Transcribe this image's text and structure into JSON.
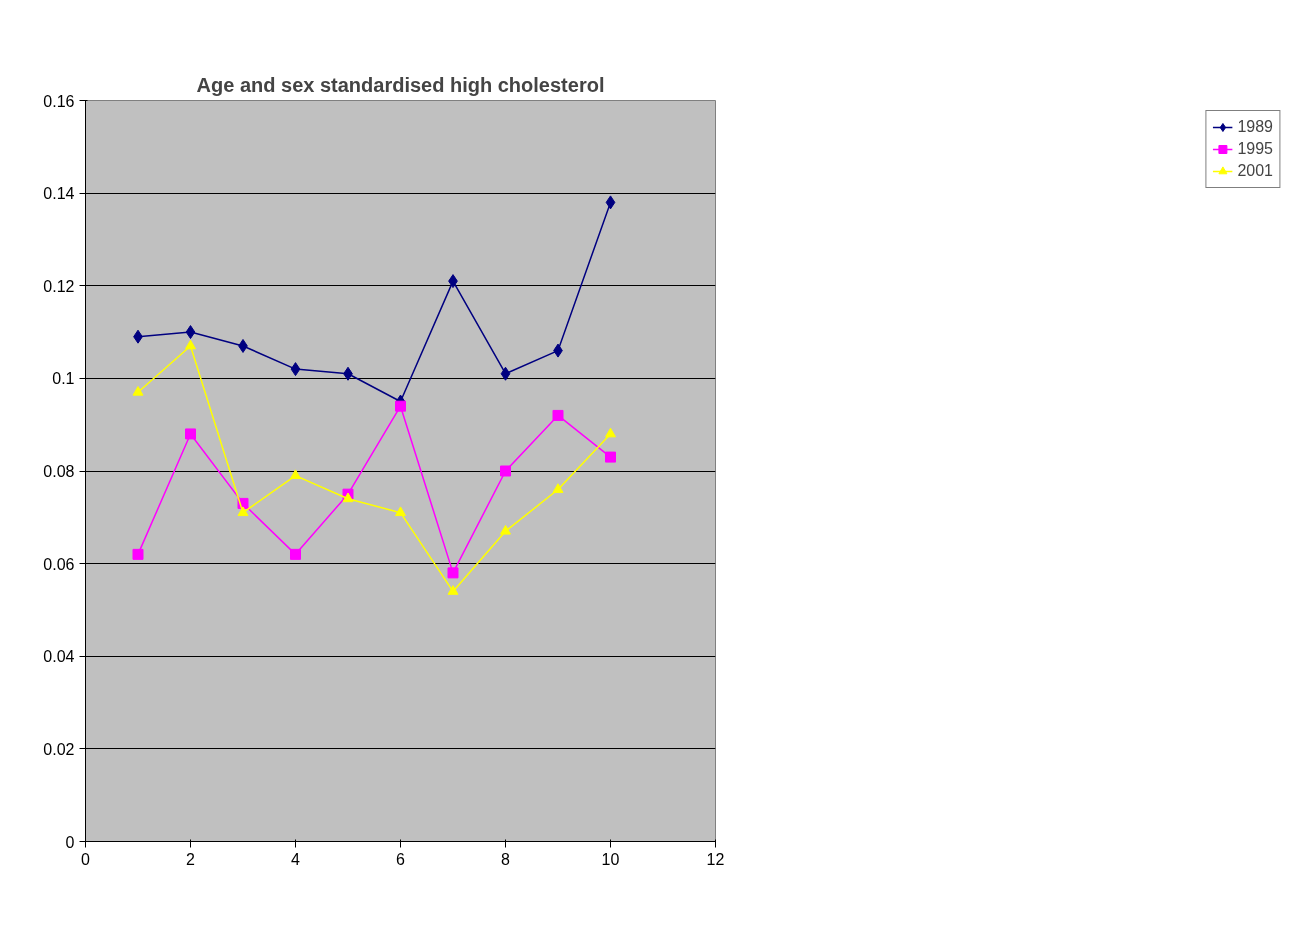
{
  "chart_data": {
    "type": "line",
    "title": "Age and sex standardised high cholesterol",
    "x": [
      1,
      2,
      3,
      4,
      5,
      6,
      7,
      8,
      9,
      10
    ],
    "series": [
      {
        "name": "1989",
        "color": "#000080",
        "marker": "diamond",
        "values": [
          0.109,
          0.11,
          0.107,
          0.102,
          0.101,
          0.095,
          0.121,
          0.101,
          0.106,
          0.138
        ]
      },
      {
        "name": "1995",
        "color": "#ff00ff",
        "marker": "square",
        "values": [
          0.062,
          0.088,
          0.073,
          0.062,
          0.075,
          0.094,
          0.058,
          0.08,
          0.092,
          0.083
        ]
      },
      {
        "name": "2001",
        "color": "#ffff00",
        "marker": "triangle",
        "values": [
          0.097,
          0.107,
          0.071,
          0.079,
          0.074,
          0.071,
          0.054,
          0.067,
          0.076,
          0.088
        ]
      }
    ],
    "xlim": [
      0,
      12
    ],
    "xticks": [
      0,
      2,
      4,
      6,
      8,
      10,
      12
    ],
    "ylim": [
      0,
      0.16
    ],
    "yticks": [
      0,
      0.02,
      0.04,
      0.06,
      0.08,
      0.1,
      0.12,
      0.14,
      0.16
    ],
    "grid": "y",
    "legend": "right",
    "line_style": "solid"
  }
}
